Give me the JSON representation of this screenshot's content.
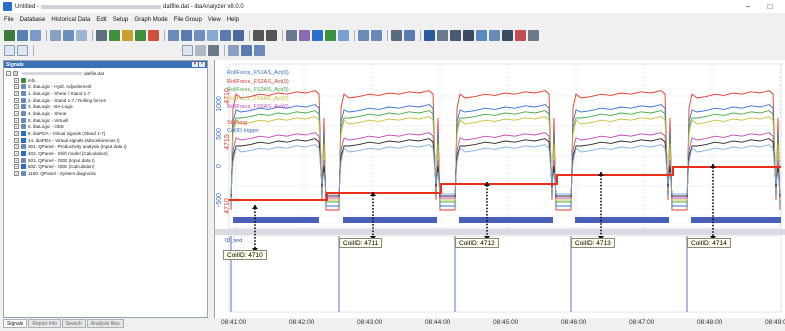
{
  "window": {
    "title_prefix": "Untitled -",
    "title_file": "datfile.dat",
    "title_app": "- ibaAnalyzer v8.0.0",
    "minimize": "–",
    "maximize": "□"
  },
  "menu": [
    "File",
    "Database",
    "Historical Data",
    "Edit",
    "Setup",
    "Graph Mode",
    "File Group",
    "View",
    "Help"
  ],
  "signals_panel": {
    "title": "Signals",
    "file_label": "datfile.dat",
    "items": [
      {
        "label": "info",
        "icon": "info-icon"
      },
      {
        "label": "0. ibaLogic - Hydr. Adjustement",
        "icon": "list-icon"
      },
      {
        "label": "1. ibaLogic - Shear / Stand 1-7",
        "icon": "list-icon"
      },
      {
        "label": "2. ibaLogic - Stand 1-7 / Rolling forces",
        "icon": "list-icon"
      },
      {
        "label": "3. ibaLogic - BA-Logic",
        "icon": "list-icon"
      },
      {
        "label": "4. ibaLogic - Shear",
        "icon": "list-icon"
      },
      {
        "label": "5. ibaLogic - Virtuell",
        "icon": "list-icon"
      },
      {
        "label": "6. ibaLogic - OEE",
        "icon": "list-icon"
      },
      {
        "label": "8. ibaPDA - Virtual signals (Stand 1-7)",
        "icon": "fx-icon"
      },
      {
        "label": "14. ibaPDA - Virtual signals (Miscellaneous I)",
        "icon": "fx-icon"
      },
      {
        "label": "301. QPanel - Productivity analysis (Input data I)",
        "icon": "list-icon"
      },
      {
        "label": "402. QPanel - Shift model (Calculation)",
        "icon": "fx-icon"
      },
      {
        "label": "501. QPanel - OEE (Input data I)",
        "icon": "list-icon"
      },
      {
        "label": "502. QPanel - OEE (Calculation)",
        "icon": "fx-icon"
      },
      {
        "label": "1100. QPanel - System diagnosis",
        "icon": "list-icon"
      }
    ],
    "tabs": [
      "Signals",
      "Report info",
      "Search",
      "Analysis files"
    ]
  },
  "graph": {
    "legend": [
      {
        "label": "RollForce_FS1AS_Act(0)",
        "color": "#3b6fd0"
      },
      {
        "label": "RollForce_FS2AS_Act(0)",
        "color": "#e03a2a"
      },
      {
        "label": "RollForce_FS3AS_Act(0)",
        "color": "#48a848"
      },
      {
        "label": "RollForce_FS4AS_Act(0)",
        "color": "#c8c040"
      },
      {
        "label": "RollForce_FS5AS_Act(0)",
        "color": "#c04ab8"
      }
    ],
    "extra_labels": [
      "Stellung",
      "CoilID trigger"
    ],
    "y_ticks_left": [
      "1000",
      "500",
      "0",
      "-500"
    ],
    "y_ticks_red": [
      "4710",
      "4715",
      "4710"
    ],
    "id_text_label": "ID_text",
    "coil_ids": [
      "CoilID: 4710",
      "CoilID: 4711",
      "CoilID: 4712",
      "CoilID: 4713",
      "CoilID: 4714"
    ],
    "time_ticks": [
      "08:41:00",
      "08:42:00",
      "08:43:00",
      "08:44:00",
      "08:45:00",
      "08:46:00",
      "08:47:00",
      "08:48:00",
      "08:49:00"
    ]
  },
  "colors": {
    "accent": "#3b6fb6",
    "step_line": "#e8301c",
    "coil_bar": "#4a5fb8",
    "arrow": "#111111"
  }
}
